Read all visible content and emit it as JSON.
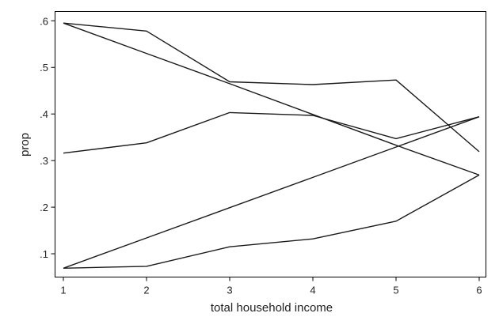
{
  "chart_data": {
    "type": "line",
    "title": "",
    "xlabel": "total household income",
    "ylabel": "prop",
    "xlim": [
      1,
      6
    ],
    "ylim": [
      0.05,
      0.62
    ],
    "xticks": [
      1,
      2,
      3,
      4,
      5,
      6
    ],
    "xtick_labels": [
      "1",
      "2",
      "3",
      "4",
      "5",
      "6"
    ],
    "yticks": [
      0.1,
      0.2,
      0.3,
      0.4,
      0.5,
      0.6
    ],
    "ytick_labels": [
      ".1",
      ".2",
      ".3",
      ".4",
      ".5",
      ".6"
    ],
    "grid": false,
    "x": [
      1,
      2,
      3,
      4,
      5,
      6
    ],
    "series": [
      {
        "values": [
          0.595,
          0.578,
          0.469,
          0.463,
          0.473,
          0.319
        ]
      },
      {
        "values": [
          0.595,
          0.53,
          0.465,
          0.399,
          0.333,
          0.269
        ]
      },
      {
        "values": [
          0.316,
          0.338,
          0.403,
          0.397,
          0.347,
          0.394
        ]
      },
      {
        "values": [
          0.069,
          0.134,
          0.199,
          0.264,
          0.329,
          0.394
        ]
      },
      {
        "values": [
          0.069,
          0.073,
          0.115,
          0.132,
          0.17,
          0.269
        ]
      }
    ],
    "line_color": "#1a1a1a"
  }
}
